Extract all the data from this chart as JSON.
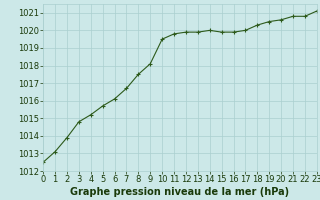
{
  "x": [
    0,
    1,
    2,
    3,
    4,
    5,
    6,
    7,
    8,
    9,
    10,
    11,
    12,
    13,
    14,
    15,
    16,
    17,
    18,
    19,
    20,
    21,
    22,
    23
  ],
  "y": [
    1012.5,
    1013.1,
    1013.9,
    1014.8,
    1015.2,
    1015.7,
    1016.1,
    1016.7,
    1017.5,
    1018.1,
    1019.5,
    1019.8,
    1019.9,
    1019.9,
    1020.0,
    1019.9,
    1019.9,
    1020.0,
    1020.3,
    1020.5,
    1020.6,
    1020.8,
    1020.8,
    1021.1
  ],
  "line_color": "#2d5a1b",
  "marker": "+",
  "bg_color": "#cce8e8",
  "grid_color": "#aacfcf",
  "xlabel": "Graphe pression niveau de la mer (hPa)",
  "xlabel_color": "#1a3a0a",
  "xlabel_fontsize": 7,
  "tick_color": "#1a3a0a",
  "tick_fontsize": 6,
  "ylim": [
    1012,
    1021.5
  ],
  "yticks": [
    1012,
    1013,
    1014,
    1015,
    1016,
    1017,
    1018,
    1019,
    1020,
    1021
  ],
  "xlim": [
    0,
    23
  ],
  "xticks": [
    0,
    1,
    2,
    3,
    4,
    5,
    6,
    7,
    8,
    9,
    10,
    11,
    12,
    13,
    14,
    15,
    16,
    17,
    18,
    19,
    20,
    21,
    22,
    23
  ]
}
